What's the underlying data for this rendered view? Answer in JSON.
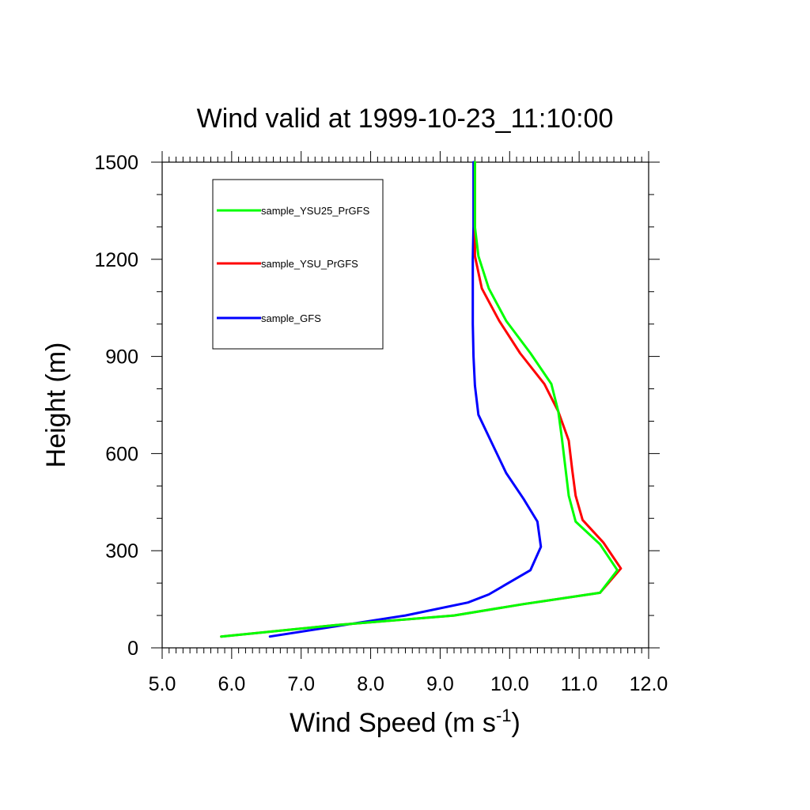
{
  "chart_data": {
    "type": "line",
    "title": "Wind valid at 1999-10-23_11:10:00",
    "xlabel": "Wind Speed (m s",
    "xlabel_superscript": "-1",
    "xlabel_suffix": ")",
    "ylabel": "Height (m)",
    "xlim": [
      5.0,
      12.0
    ],
    "ylim": [
      0,
      1500
    ],
    "xticks": [
      "5.0",
      "6.0",
      "7.0",
      "8.0",
      "9.0",
      "10.0",
      "11.0",
      "12.0"
    ],
    "yticks": [
      "0",
      "300",
      "600",
      "900",
      "1200",
      "1500"
    ],
    "legend_position": "top-left",
    "grid": false,
    "series": [
      {
        "name": "sample_YSU25_PrGFS",
        "color": "#00ff00",
        "points": [
          [
            5.85,
            35
          ],
          [
            7.5,
            70
          ],
          [
            9.2,
            100
          ],
          [
            10.2,
            135
          ],
          [
            11.3,
            170
          ],
          [
            11.55,
            240
          ],
          [
            11.3,
            320
          ],
          [
            10.95,
            390
          ],
          [
            10.85,
            470
          ],
          [
            10.8,
            560
          ],
          [
            10.75,
            650
          ],
          [
            10.7,
            730
          ],
          [
            10.6,
            815
          ],
          [
            10.3,
            910
          ],
          [
            9.95,
            1010
          ],
          [
            9.7,
            1110
          ],
          [
            9.55,
            1210
          ],
          [
            9.5,
            1300
          ],
          [
            9.5,
            1400
          ],
          [
            9.5,
            1500
          ]
        ]
      },
      {
        "name": "sample_YSU_PrGFS",
        "color": "#ff0000",
        "points": [
          [
            5.85,
            35
          ],
          [
            7.5,
            70
          ],
          [
            9.2,
            100
          ],
          [
            10.2,
            135
          ],
          [
            11.3,
            170
          ],
          [
            11.6,
            245
          ],
          [
            11.35,
            325
          ],
          [
            11.05,
            395
          ],
          [
            10.95,
            470
          ],
          [
            10.9,
            550
          ],
          [
            10.85,
            640
          ],
          [
            10.7,
            730
          ],
          [
            10.5,
            815
          ],
          [
            10.15,
            910
          ],
          [
            9.85,
            1010
          ],
          [
            9.6,
            1110
          ],
          [
            9.5,
            1210
          ],
          [
            9.5,
            1300
          ],
          [
            9.5,
            1400
          ],
          [
            9.5,
            1500
          ]
        ]
      },
      {
        "name": "sample_GFS",
        "color": "#0000ff",
        "points": [
          [
            6.55,
            35
          ],
          [
            8.5,
            100
          ],
          [
            9.4,
            140
          ],
          [
            9.7,
            165
          ],
          [
            10.3,
            240
          ],
          [
            10.45,
            312
          ],
          [
            10.4,
            390
          ],
          [
            10.2,
            460
          ],
          [
            9.95,
            540
          ],
          [
            9.75,
            630
          ],
          [
            9.55,
            720
          ],
          [
            9.5,
            810
          ],
          [
            9.48,
            900
          ],
          [
            9.47,
            1000
          ],
          [
            9.47,
            1100
          ],
          [
            9.47,
            1200
          ],
          [
            9.48,
            1300
          ],
          [
            9.48,
            1400
          ],
          [
            9.48,
            1500
          ]
        ]
      }
    ]
  }
}
